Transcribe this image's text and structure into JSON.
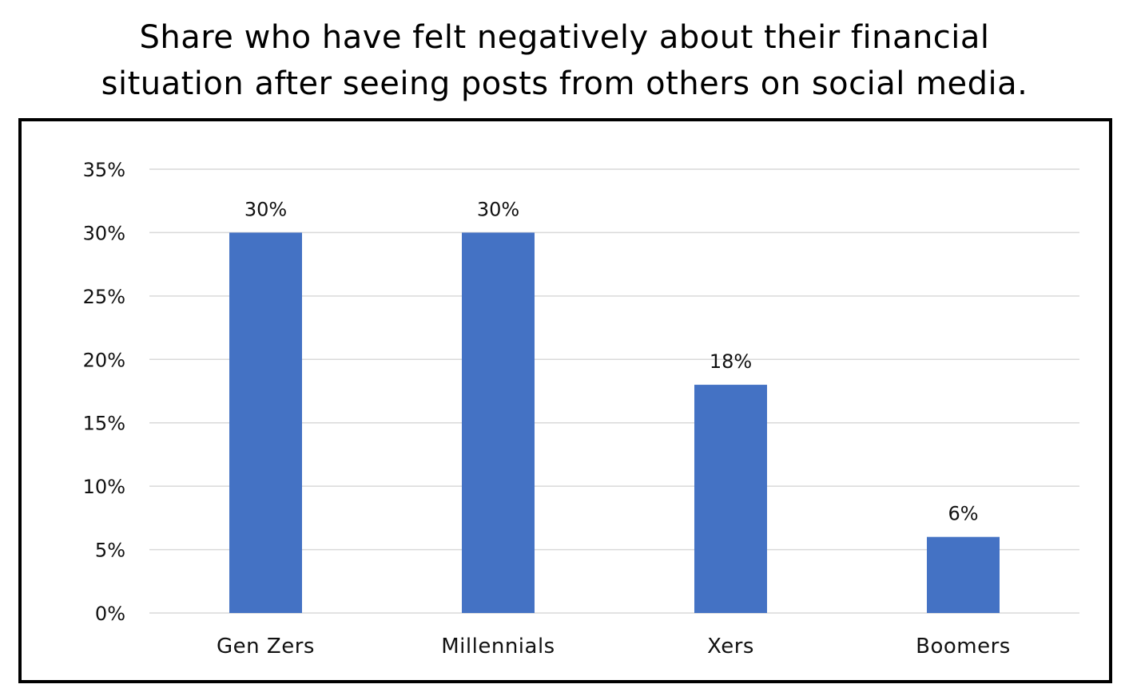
{
  "chart_data": {
    "type": "bar",
    "title_lines": [
      "Share who have felt negatively about their financial",
      "situation after seeing posts from others on social media."
    ],
    "categories": [
      "Gen Zers",
      "Millennials",
      "Xers",
      "Boomers"
    ],
    "values": [
      30,
      30,
      18,
      6
    ],
    "data_labels": [
      "30%",
      "30%",
      "18%",
      "6%"
    ],
    "y_ticks": [
      "0%",
      "5%",
      "10%",
      "15%",
      "20%",
      "25%",
      "30%",
      "35%"
    ],
    "y_tick_values": [
      0,
      5,
      10,
      15,
      20,
      25,
      30,
      35
    ],
    "ylim": [
      0,
      35
    ],
    "grid": true,
    "legend": "none",
    "bar_color": "#4472C4",
    "grid_color": "#D9D9D9"
  }
}
